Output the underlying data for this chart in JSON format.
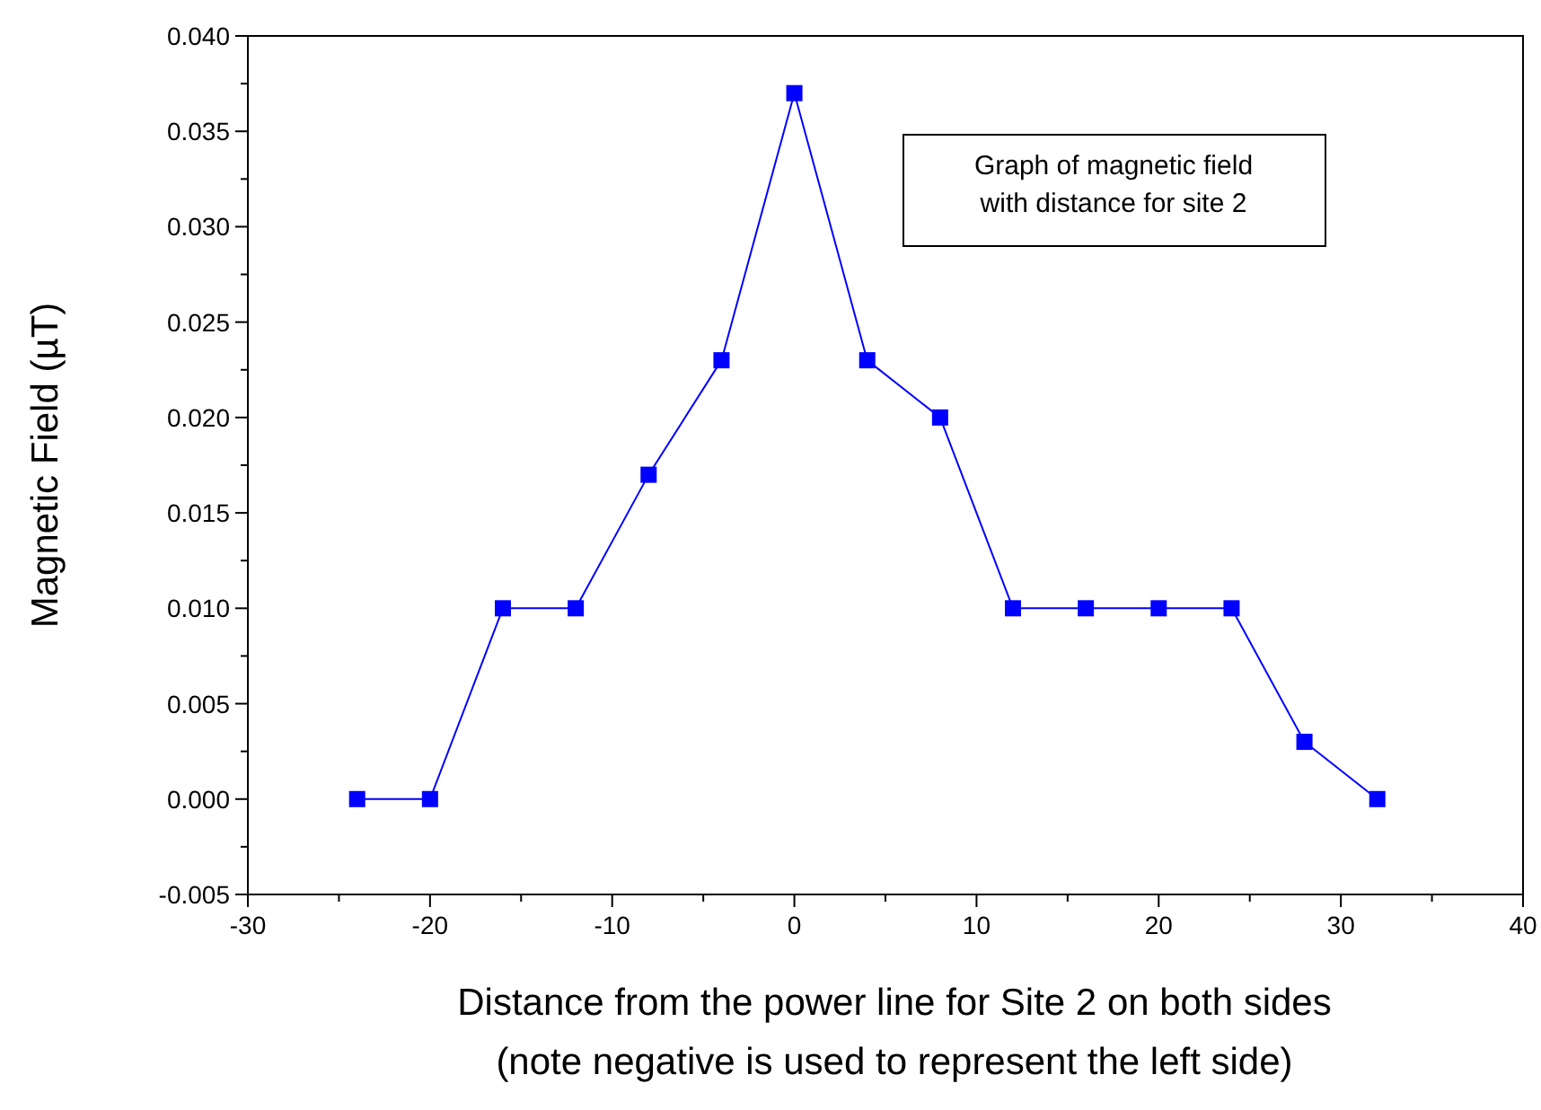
{
  "chart_data": {
    "type": "line",
    "xlabel": "Distance from the power line for Site 2 on both sides\n(note negative is used to represent the left side)",
    "ylabel": "Magnetic Field (µT)",
    "annotations": [
      "Graph of magnetic field\nwith distance for site 2"
    ],
    "x": [
      -24,
      -20,
      -16,
      -12,
      -8,
      -4,
      0,
      4,
      8,
      12,
      16,
      20,
      24,
      28,
      32
    ],
    "series": [
      {
        "color": "#0000ff",
        "values": [
          0.0,
          0.0,
          0.01,
          0.01,
          0.017,
          0.023,
          0.037,
          0.023,
          0.02,
          0.01,
          0.01,
          0.01,
          0.01,
          0.003,
          0.0
        ]
      }
    ],
    "xlim": [
      -30,
      40
    ],
    "xticks": [
      -30,
      {
        "value": -25,
        "label": null
      },
      -20,
      {
        "value": -15,
        "label": null
      },
      -10,
      {
        "value": -5,
        "label": null
      },
      0,
      {
        "value": 5,
        "label": null
      },
      10,
      {
        "value": 15,
        "label": null
      },
      20,
      {
        "value": 25,
        "label": null
      },
      30,
      {
        "value": 35,
        "label": null
      },
      40
    ],
    "ylim": [
      -0.005,
      0.04
    ],
    "yticks": [
      {
        "value": -0.005,
        "label": "-0.005"
      },
      {
        "value": -0.0025,
        "label": null
      },
      {
        "value": 0,
        "label": "0.000"
      },
      {
        "value": 0.0025,
        "label": null
      },
      {
        "value": 0.005,
        "label": "0.005"
      },
      {
        "value": 0.0075,
        "label": null
      },
      {
        "value": 0.01,
        "label": "0.010"
      },
      {
        "value": 0.0125,
        "label": null
      },
      {
        "value": 0.015,
        "label": "0.015"
      },
      {
        "value": 0.0175,
        "label": null
      },
      {
        "value": 0.02,
        "label": "0.020"
      },
      {
        "value": 0.0225,
        "label": null
      },
      {
        "value": 0.025,
        "label": "0.025"
      },
      {
        "value": 0.0275,
        "label": null
      },
      {
        "value": 0.03,
        "label": "0.030"
      },
      {
        "value": 0.0325,
        "label": null
      },
      {
        "value": 0.035,
        "label": "0.035"
      },
      {
        "value": 0.0375,
        "label": null
      },
      {
        "value": 0.04,
        "label": "0.040"
      }
    ],
    "marker": "square",
    "line_style": "solid"
  }
}
